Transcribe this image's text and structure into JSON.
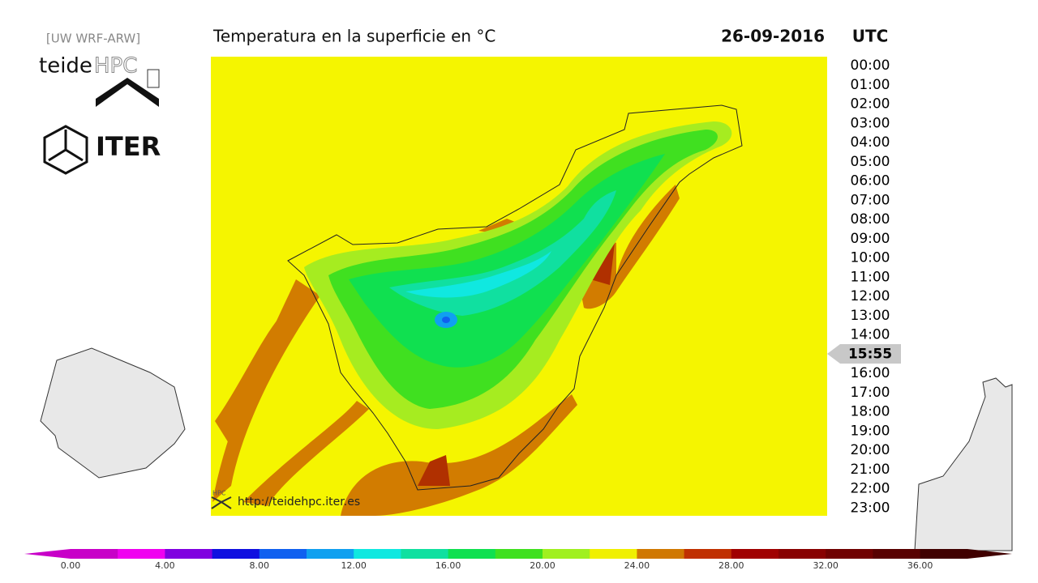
{
  "header": {
    "model": "[UW WRF-ARW]",
    "logo_left": "teide",
    "logo_right": "HPC",
    "iter": "ITER",
    "title": "Temperatura en la superficie en °C",
    "date": "26-09-2016",
    "timezone": "UTC"
  },
  "times": [
    "00:00",
    "01:00",
    "02:00",
    "03:00",
    "04:00",
    "05:00",
    "06:00",
    "07:00",
    "08:00",
    "09:00",
    "10:00",
    "11:00",
    "12:00",
    "13:00",
    "14:00",
    "15:55",
    "16:00",
    "17:00",
    "18:00",
    "19:00",
    "20:00",
    "21:00",
    "22:00",
    "23:00"
  ],
  "map": {
    "watermark": "HPC",
    "url": "http://teidehpc.iter.es"
  },
  "colorbar": {
    "labels": [
      "0.00",
      "4.00",
      "8.00",
      "12.00",
      "16.00",
      "20.00",
      "24.00",
      "28.00",
      "32.00",
      "36.00"
    ]
  }
}
